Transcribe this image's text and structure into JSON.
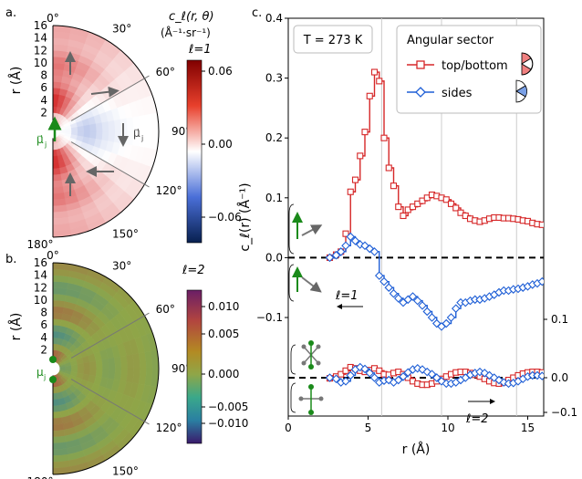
{
  "panels": {
    "a": {
      "label": "a.",
      "ell_label": "ℓ=1",
      "dipole_label": "μ⃗",
      "dipole_sub": "j",
      "dipole_label_right": "μ⃗",
      "dipole_sub_right": "j"
    },
    "b": {
      "label": "b.",
      "ell_label": "ℓ=2",
      "dipole_label": "μ",
      "dipole_sub": "j"
    },
    "c": {
      "label": "c."
    }
  },
  "polar": {
    "r_axis_label": "r (Å)",
    "r_ticks": [
      "2",
      "4",
      "6",
      "8",
      "10",
      "12",
      "14",
      "16"
    ],
    "angle_labels": [
      "0°",
      "30°",
      "60°",
      "90°",
      "120°",
      "150°",
      "180°"
    ],
    "colorbar_title": "c_ℓ(r, θ)",
    "colorbar_units": "(Å⁻¹·sr⁻¹)"
  },
  "colorbar_a": {
    "ticks": [
      "0.06",
      "0.00",
      "−0.06"
    ],
    "colors": {
      "pos": "#b30000",
      "zero": "#ffffff",
      "neg": "#08306b"
    }
  },
  "colorbar_b": {
    "ticks": [
      "0.010",
      "0.005",
      "0.000",
      "−0.005",
      "−0.010"
    ],
    "colors": {
      "pos": "#8c2d8c",
      "zero": "#7fbf7f",
      "neg": "#4b0082"
    }
  },
  "chart_data": {
    "type": "line",
    "xlabel": "r (Å)",
    "ylabel": "c_ℓ(r) (Å⁻¹)",
    "xlim": [
      0,
      16
    ],
    "ylim": [
      -0.1,
      0.4
    ],
    "right_axis": {
      "ylim": [
        -0.1,
        0.15
      ],
      "ticks": [
        "0.1",
        "0.0",
        "−0.1"
      ]
    },
    "x_ticks": [
      "0",
      "5",
      "10",
      "15"
    ],
    "y_ticks": [
      "0.4",
      "0.3",
      "0.2",
      "0.1",
      "0.0",
      "−0.1"
    ],
    "annotation_temp": "T = 273 K",
    "annotation_l1": "ℓ=1",
    "annotation_l2": "ℓ=2",
    "legend": {
      "title": "Angular sector",
      "position": "top-right",
      "entries": [
        "top/bottom",
        "sides"
      ]
    },
    "vlines": [
      5.85,
      9.6,
      14.3
    ],
    "series": [
      {
        "name": "top/bottom",
        "color": "#d62728",
        "panel": "l1",
        "x": [
          2.6,
          3.0,
          3.3,
          3.6,
          3.9,
          4.2,
          4.5,
          4.8,
          5.1,
          5.4,
          5.7,
          6.0,
          6.3,
          6.6,
          6.9,
          7.2,
          7.5,
          7.8,
          8.1,
          8.4,
          8.7,
          9.0,
          9.3,
          9.6,
          9.9,
          10.2,
          10.5,
          10.8,
          11.1,
          11.4,
          11.7,
          12.0,
          12.3,
          12.6,
          12.9,
          13.2,
          13.5,
          13.8,
          14.1,
          14.4,
          14.7,
          15.0,
          15.3,
          15.6,
          15.9
        ],
        "y": [
          0.0,
          0.005,
          0.01,
          0.04,
          0.11,
          0.13,
          0.17,
          0.21,
          0.27,
          0.31,
          0.295,
          0.2,
          0.15,
          0.12,
          0.085,
          0.07,
          0.08,
          0.085,
          0.09,
          0.095,
          0.1,
          0.105,
          0.103,
          0.1,
          0.097,
          0.09,
          0.083,
          0.075,
          0.07,
          0.065,
          0.062,
          0.06,
          0.062,
          0.065,
          0.067,
          0.067,
          0.066,
          0.066,
          0.065,
          0.064,
          0.062,
          0.061,
          0.058,
          0.056,
          0.055
        ]
      },
      {
        "name": "sides",
        "color": "#1f5fd6",
        "panel": "l1",
        "x": [
          2.6,
          3.0,
          3.3,
          3.6,
          3.9,
          4.2,
          4.5,
          4.8,
          5.1,
          5.4,
          5.7,
          6.0,
          6.3,
          6.6,
          6.9,
          7.2,
          7.5,
          7.8,
          8.1,
          8.4,
          8.7,
          9.0,
          9.3,
          9.6,
          9.9,
          10.2,
          10.5,
          10.8,
          11.1,
          11.4,
          11.7,
          12.0,
          12.3,
          12.6,
          12.9,
          13.2,
          13.5,
          13.8,
          14.1,
          14.4,
          14.7,
          15.0,
          15.3,
          15.6,
          15.9
        ],
        "y": [
          0.0,
          0.004,
          0.01,
          0.02,
          0.035,
          0.028,
          0.022,
          0.02,
          0.015,
          0.01,
          -0.03,
          -0.04,
          -0.05,
          -0.06,
          -0.068,
          -0.075,
          -0.07,
          -0.065,
          -0.072,
          -0.08,
          -0.09,
          -0.1,
          -0.11,
          -0.115,
          -0.11,
          -0.1,
          -0.085,
          -0.075,
          -0.075,
          -0.072,
          -0.07,
          -0.07,
          -0.068,
          -0.065,
          -0.062,
          -0.058,
          -0.055,
          -0.055,
          -0.053,
          -0.052,
          -0.05,
          -0.048,
          -0.045,
          -0.043,
          -0.04
        ]
      },
      {
        "name": "top/bottom",
        "color": "#d62728",
        "panel": "l2",
        "x": [
          2.6,
          3.0,
          3.3,
          3.6,
          3.9,
          4.2,
          4.5,
          4.8,
          5.1,
          5.4,
          5.7,
          6.0,
          6.3,
          6.6,
          6.9,
          7.2,
          7.5,
          7.8,
          8.1,
          8.4,
          8.7,
          9.0,
          9.3,
          9.6,
          9.9,
          10.2,
          10.5,
          10.8,
          11.1,
          11.4,
          11.7,
          12.0,
          12.3,
          12.6,
          12.9,
          13.2,
          13.5,
          13.8,
          14.1,
          14.4,
          14.7,
          15.0,
          15.3,
          15.6,
          15.9
        ],
        "y": [
          -0.001,
          0.002,
          0.006,
          0.012,
          0.018,
          0.016,
          0.012,
          0.01,
          0.013,
          0.016,
          0.012,
          0.006,
          0.005,
          0.008,
          0.01,
          0.006,
          0.0,
          -0.006,
          -0.01,
          -0.012,
          -0.012,
          -0.01,
          -0.006,
          -0.002,
          0.002,
          0.006,
          0.009,
          0.01,
          0.01,
          0.008,
          0.005,
          0.002,
          -0.002,
          -0.006,
          -0.009,
          -0.01,
          -0.008,
          -0.004,
          0.0,
          0.004,
          0.007,
          0.009,
          0.01,
          0.01,
          0.009
        ]
      },
      {
        "name": "sides",
        "color": "#1f5fd6",
        "panel": "l2",
        "x": [
          2.6,
          3.0,
          3.3,
          3.6,
          3.9,
          4.2,
          4.5,
          4.8,
          5.1,
          5.4,
          5.7,
          6.0,
          6.3,
          6.6,
          6.9,
          7.2,
          7.5,
          7.8,
          8.1,
          8.4,
          8.7,
          9.0,
          9.3,
          9.6,
          9.9,
          10.2,
          10.5,
          10.8,
          11.1,
          11.4,
          11.7,
          12.0,
          12.3,
          12.6,
          12.9,
          13.2,
          13.5,
          13.8,
          14.1,
          14.4,
          14.7,
          15.0,
          15.3,
          15.6,
          15.9
        ],
        "y": [
          0.0,
          -0.002,
          -0.008,
          -0.006,
          0.004,
          0.014,
          0.018,
          0.015,
          0.008,
          0.0,
          -0.008,
          -0.005,
          -0.004,
          -0.008,
          -0.004,
          0.002,
          0.009,
          0.014,
          0.016,
          0.014,
          0.01,
          0.006,
          0.0,
          -0.006,
          -0.01,
          -0.01,
          -0.008,
          -0.004,
          0.0,
          0.005,
          0.008,
          0.01,
          0.008,
          0.004,
          0.0,
          -0.004,
          -0.008,
          -0.01,
          -0.009,
          -0.006,
          -0.002,
          0.002,
          0.004,
          0.004,
          0.003
        ]
      }
    ]
  }
}
